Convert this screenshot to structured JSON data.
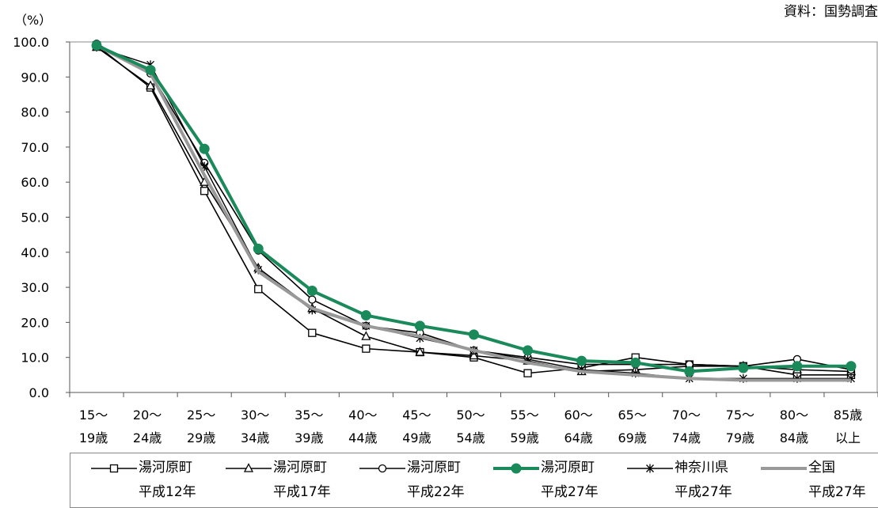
{
  "source_note": "資料：国勢調査",
  "chart_data": {
    "type": "line",
    "unit_label": "（%）",
    "ylim": [
      0,
      100
    ],
    "yticks": [
      "100.0",
      "90.0",
      "80.0",
      "70.0",
      "60.0",
      "50.0",
      "40.0",
      "30.0",
      "20.0",
      "10.0",
      "0.0"
    ],
    "categories": [
      [
        "15～",
        "19歳"
      ],
      [
        "20～",
        "24歳"
      ],
      [
        "25～",
        "29歳"
      ],
      [
        "30～",
        "34歳"
      ],
      [
        "35～",
        "39歳"
      ],
      [
        "40～",
        "44歳"
      ],
      [
        "45～",
        "49歳"
      ],
      [
        "50～",
        "54歳"
      ],
      [
        "55～",
        "59歳"
      ],
      [
        "60～",
        "64歳"
      ],
      [
        "65～",
        "69歳"
      ],
      [
        "70～",
        "74歳"
      ],
      [
        "75～",
        "79歳"
      ],
      [
        "80～",
        "84歳"
      ],
      [
        "85歳",
        "以上"
      ]
    ],
    "legend_position": "bottom",
    "series": [
      {
        "name": "湯河原町",
        "sub": "平成12年",
        "marker": "square",
        "color": "#000000",
        "width": 1.6,
        "values": [
          99.0,
          87.0,
          57.5,
          29.5,
          17.0,
          12.5,
          11.5,
          10.0,
          5.5,
          7.0,
          10.0,
          8.0,
          7.5,
          5.0,
          5.0
        ]
      },
      {
        "name": "湯河原町",
        "sub": "平成17年",
        "marker": "triangle",
        "color": "#000000",
        "width": 1.6,
        "values": [
          98.5,
          87.5,
          60.0,
          35.5,
          24.0,
          16.0,
          11.5,
          10.5,
          9.0,
          6.0,
          6.5,
          7.5,
          7.5,
          6.5,
          6.0
        ]
      },
      {
        "name": "湯河原町",
        "sub": "平成22年",
        "marker": "circle",
        "color": "#000000",
        "width": 1.6,
        "values": [
          99.5,
          91.0,
          65.5,
          40.5,
          26.5,
          19.0,
          17.0,
          12.0,
          10.0,
          8.0,
          8.0,
          8.0,
          7.5,
          9.5,
          6.5
        ]
      },
      {
        "name": "湯河原町",
        "sub": "平成27年",
        "marker": "dot",
        "color": "#1a8a5a",
        "width": 4,
        "values": [
          99.0,
          92.0,
          69.5,
          41.0,
          29.0,
          22.0,
          19.0,
          16.5,
          12.0,
          9.0,
          8.5,
          6.0,
          7.0,
          7.5,
          7.5
        ]
      },
      {
        "name": "神奈川県",
        "sub": "平成27年",
        "marker": "star",
        "color": "#000000",
        "width": 1.4,
        "values": [
          98.5,
          93.5,
          64.5,
          35.0,
          23.5,
          19.0,
          15.5,
          12.0,
          9.5,
          6.5,
          5.5,
          4.0,
          4.0,
          4.0,
          4.0
        ]
      },
      {
        "name": "全国",
        "sub": "平成27年",
        "marker": "none",
        "color": "#999999",
        "width": 4,
        "values": [
          99.0,
          91.0,
          62.0,
          34.5,
          24.0,
          19.0,
          16.0,
          12.0,
          8.5,
          6.0,
          5.0,
          4.0,
          3.5,
          3.5,
          3.5
        ]
      }
    ]
  }
}
